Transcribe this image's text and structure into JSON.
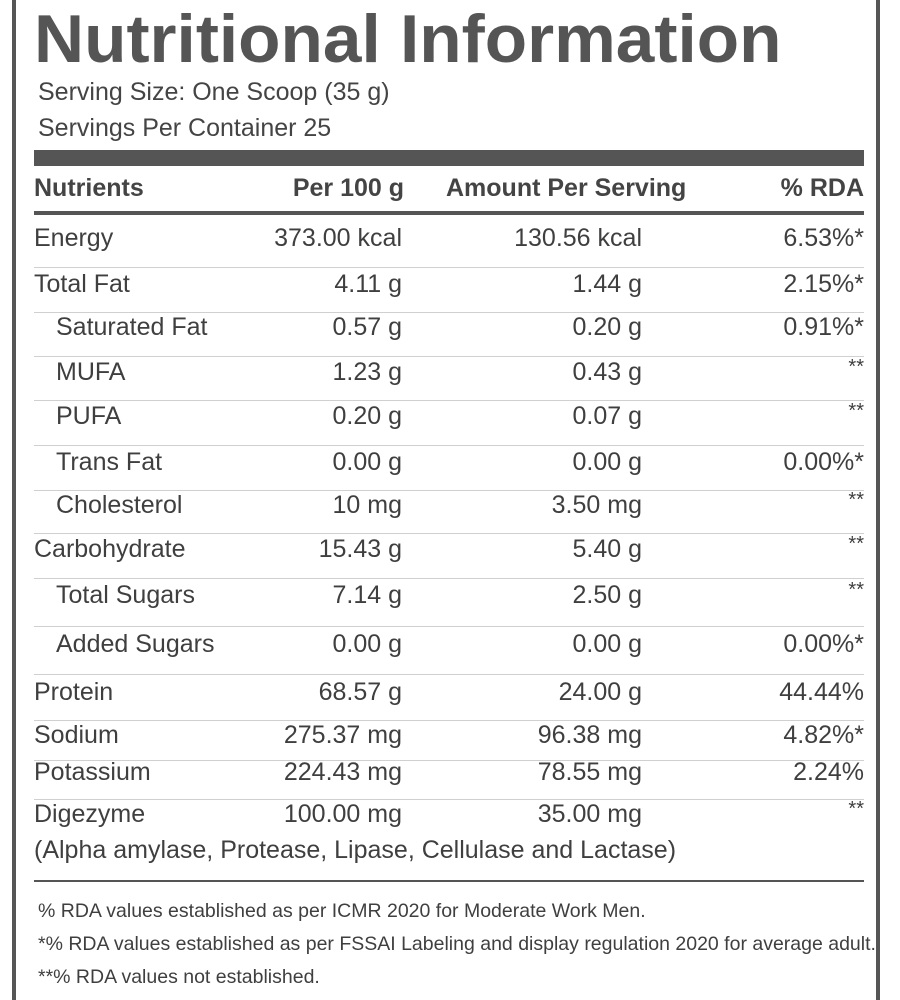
{
  "title": "Nutritional Information",
  "serving_size": "Serving Size: One Scoop (35 g)",
  "servings_per_container": "Servings Per Container 25",
  "headers": {
    "nutrients": "Nutrients",
    "per_100g": "Per 100 g",
    "per_serving": "Amount Per Serving",
    "rda": "% RDA"
  },
  "rows": [
    {
      "name": "Energy",
      "per_100g": "373.00 kcal",
      "per_serving": "130.56 kcal",
      "rda": "6.53%*",
      "indent": false
    },
    {
      "name": "Total Fat",
      "per_100g": "4.11 g",
      "per_serving": "1.44 g",
      "rda": "2.15%*",
      "indent": false
    },
    {
      "name": "Saturated Fat",
      "per_100g": "0.57 g",
      "per_serving": "0.20 g",
      "rda": "0.91%*",
      "indent": true
    },
    {
      "name": "MUFA",
      "per_100g": "1.23 g",
      "per_serving": "0.43 g",
      "rda": "**",
      "indent": true
    },
    {
      "name": "PUFA",
      "per_100g": "0.20 g",
      "per_serving": "0.07 g",
      "rda": "**",
      "indent": true
    },
    {
      "name": "Trans Fat",
      "per_100g": "0.00 g",
      "per_serving": "0.00 g",
      "rda": "0.00%*",
      "indent": true
    },
    {
      "name": "Cholesterol",
      "per_100g": "10 mg",
      "per_serving": "3.50 mg",
      "rda": "**",
      "indent": true
    },
    {
      "name": "Carbohydrate",
      "per_100g": "15.43 g",
      "per_serving": "5.40 g",
      "rda": "**",
      "indent": false
    },
    {
      "name": "Total Sugars",
      "per_100g": "7.14 g",
      "per_serving": "2.50 g",
      "rda": "**",
      "indent": true
    },
    {
      "name": "Added Sugars",
      "per_100g": "0.00 g",
      "per_serving": "0.00 g",
      "rda": "0.00%*",
      "indent": true
    },
    {
      "name": "Protein",
      "per_100g": "68.57 g",
      "per_serving": "24.00 g",
      "rda": "44.44%",
      "indent": false
    },
    {
      "name": "Sodium",
      "per_100g": "275.37 mg",
      "per_serving": "96.38 mg",
      "rda": "4.82%*",
      "indent": false
    },
    {
      "name": "Potassium",
      "per_100g": "224.43 mg",
      "per_serving": "78.55 mg",
      "rda": "2.24%",
      "indent": false
    },
    {
      "name": "Digezyme",
      "per_100g": "100.00 mg",
      "per_serving": "35.00 mg",
      "rda": "**",
      "indent": false
    }
  ],
  "digezyme_note": "(Alpha amylase, Protease, Lipase, Cellulase and Lactase)",
  "footnotes": [
    "% RDA values established as per ICMR 2020 for Moderate Work Men.",
    "*% RDA values established as per FSSAI Labeling and display regulation 2020 for average adult.",
    "**% RDA values not established."
  ]
}
